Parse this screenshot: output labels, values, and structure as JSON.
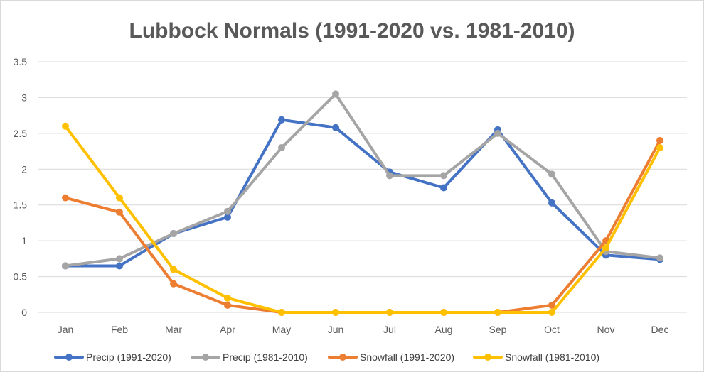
{
  "chart_data": {
    "type": "line",
    "title": "Lubbock Normals (1991-2020 vs. 1981-2010)",
    "xlabel": "",
    "ylabel": "",
    "categories": [
      "Jan",
      "Feb",
      "Mar",
      "Apr",
      "May",
      "Jun",
      "Jul",
      "Aug",
      "Sep",
      "Oct",
      "Nov",
      "Dec"
    ],
    "ylim": [
      0,
      3.5
    ],
    "yticks": [
      "0",
      "0.5",
      "1",
      "1.5",
      "2",
      "2.5",
      "3",
      "3.5"
    ],
    "grid": true,
    "legend_position": "bottom",
    "series": [
      {
        "name": "Precip (1991-2020)",
        "color": "#4472C4",
        "values": [
          0.65,
          0.65,
          1.1,
          1.33,
          2.69,
          2.58,
          1.96,
          1.74,
          2.55,
          1.53,
          0.8,
          0.74
        ]
      },
      {
        "name": "Precip (1981-2010)",
        "color": "#A5A5A5",
        "values": [
          0.65,
          0.75,
          1.1,
          1.41,
          2.3,
          3.05,
          1.91,
          1.91,
          2.5,
          1.93,
          0.85,
          0.76
        ]
      },
      {
        "name": "Snowfall (1991-2020)",
        "color": "#ED7D31",
        "values": [
          1.6,
          1.4,
          0.4,
          0.1,
          0,
          0,
          0,
          0,
          0,
          0.1,
          1.0,
          2.4
        ]
      },
      {
        "name": "Snowfall (1981-2010)",
        "color": "#FFC000",
        "values": [
          2.6,
          1.6,
          0.6,
          0.2,
          0,
          0,
          0,
          0,
          0,
          0,
          0.9,
          2.3
        ]
      }
    ]
  }
}
